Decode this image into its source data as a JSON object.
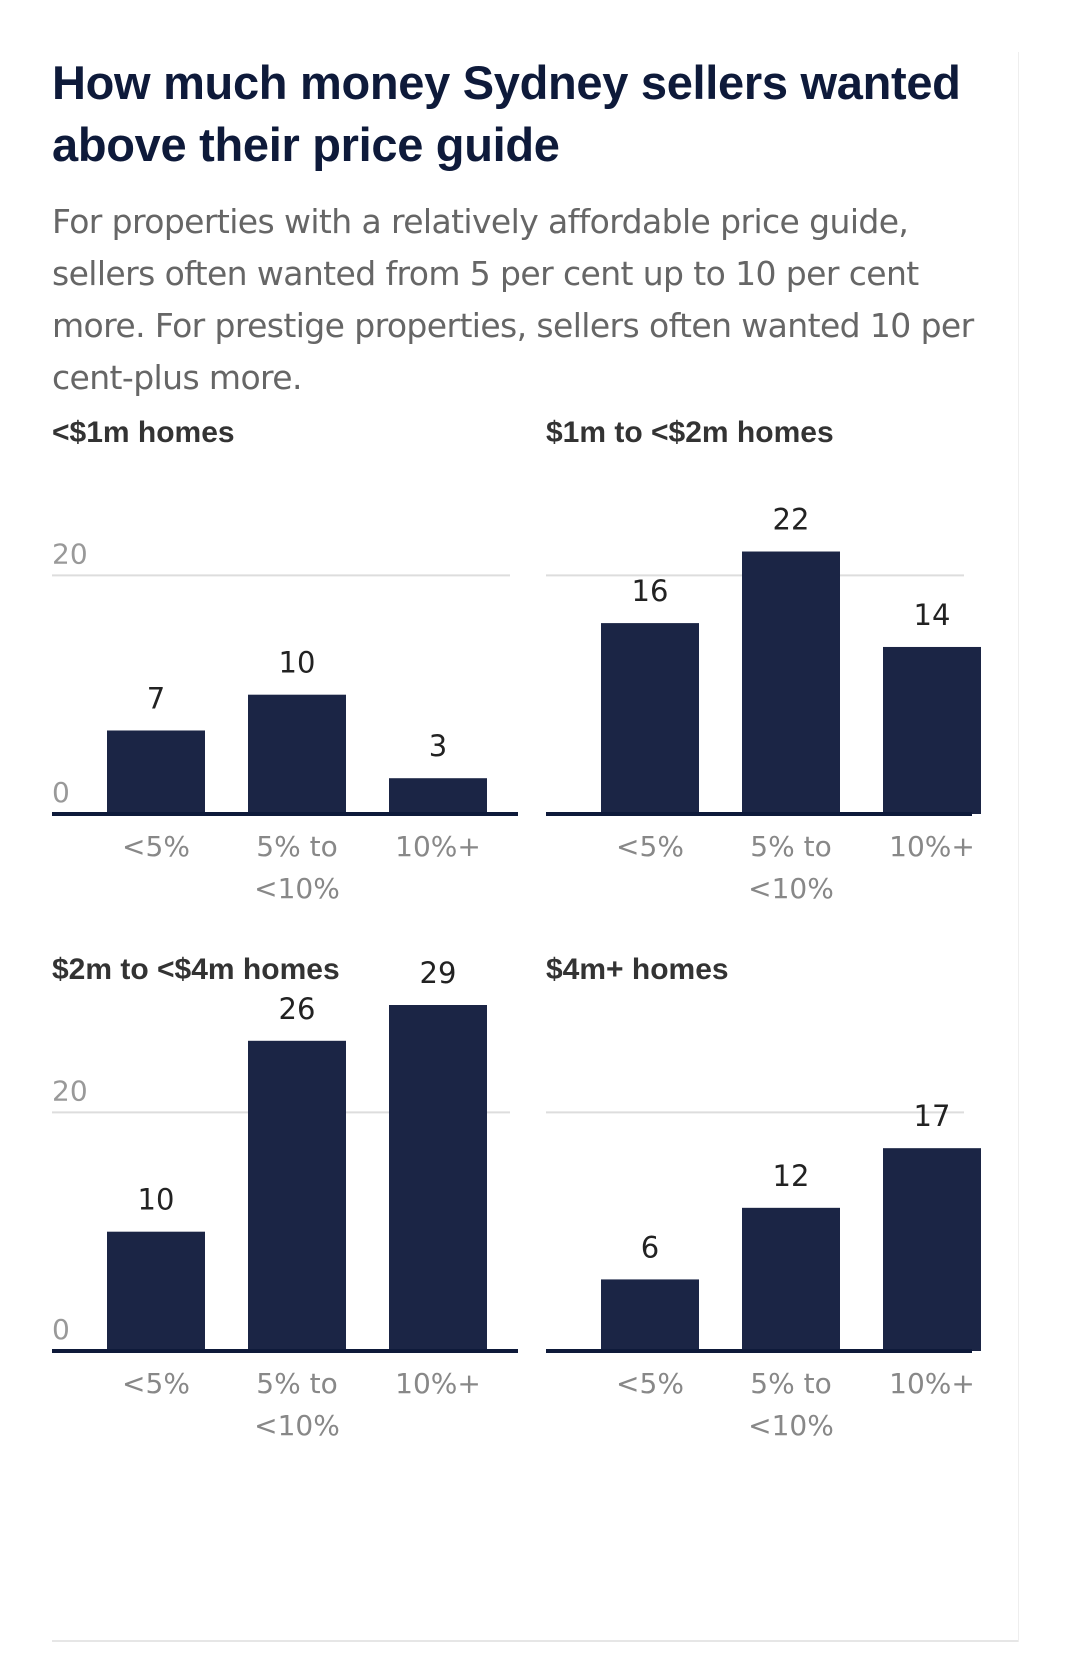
{
  "title": "How much money Sydney sellers wanted above their price guide",
  "subtitle": "For properties with a relatively affordable price guide, sellers often wanted from 5 per cent up to 10 per cent more. For prestige properties, sellers often wanted 10 per cent-plus more.",
  "colors": {
    "bar": "#1b2545",
    "gridline": "#dddddd",
    "axis": "#0e1a3a"
  },
  "chart_data": [
    {
      "type": "bar",
      "title": "<$1m homes",
      "categories": [
        [
          "<5%"
        ],
        [
          "5% to",
          "<10%"
        ],
        [
          "10%+"
        ]
      ],
      "values": [
        7,
        10,
        3
      ],
      "yticks": [
        0,
        20
      ],
      "ylim": [
        0,
        29
      ],
      "grid": true
    },
    {
      "type": "bar",
      "title": "$1m to <$2m homes",
      "categories": [
        [
          "<5%"
        ],
        [
          "5% to",
          "<10%"
        ],
        [
          "10%+"
        ]
      ],
      "values": [
        16,
        22,
        14
      ],
      "yticks": [],
      "ylim": [
        0,
        29
      ],
      "grid": true
    },
    {
      "type": "bar",
      "title": "$2m to <$4m homes",
      "categories": [
        [
          "<5%"
        ],
        [
          "5% to",
          "<10%"
        ],
        [
          "10%+"
        ]
      ],
      "values": [
        10,
        26,
        29
      ],
      "yticks": [
        0,
        20
      ],
      "ylim": [
        0,
        29
      ],
      "grid": true
    },
    {
      "type": "bar",
      "title": "$4m+ homes",
      "categories": [
        [
          "<5%"
        ],
        [
          "5% to",
          "<10%"
        ],
        [
          "10%+"
        ]
      ],
      "values": [
        6,
        12,
        17
      ],
      "yticks": [],
      "ylim": [
        0,
        29
      ],
      "grid": true
    }
  ]
}
